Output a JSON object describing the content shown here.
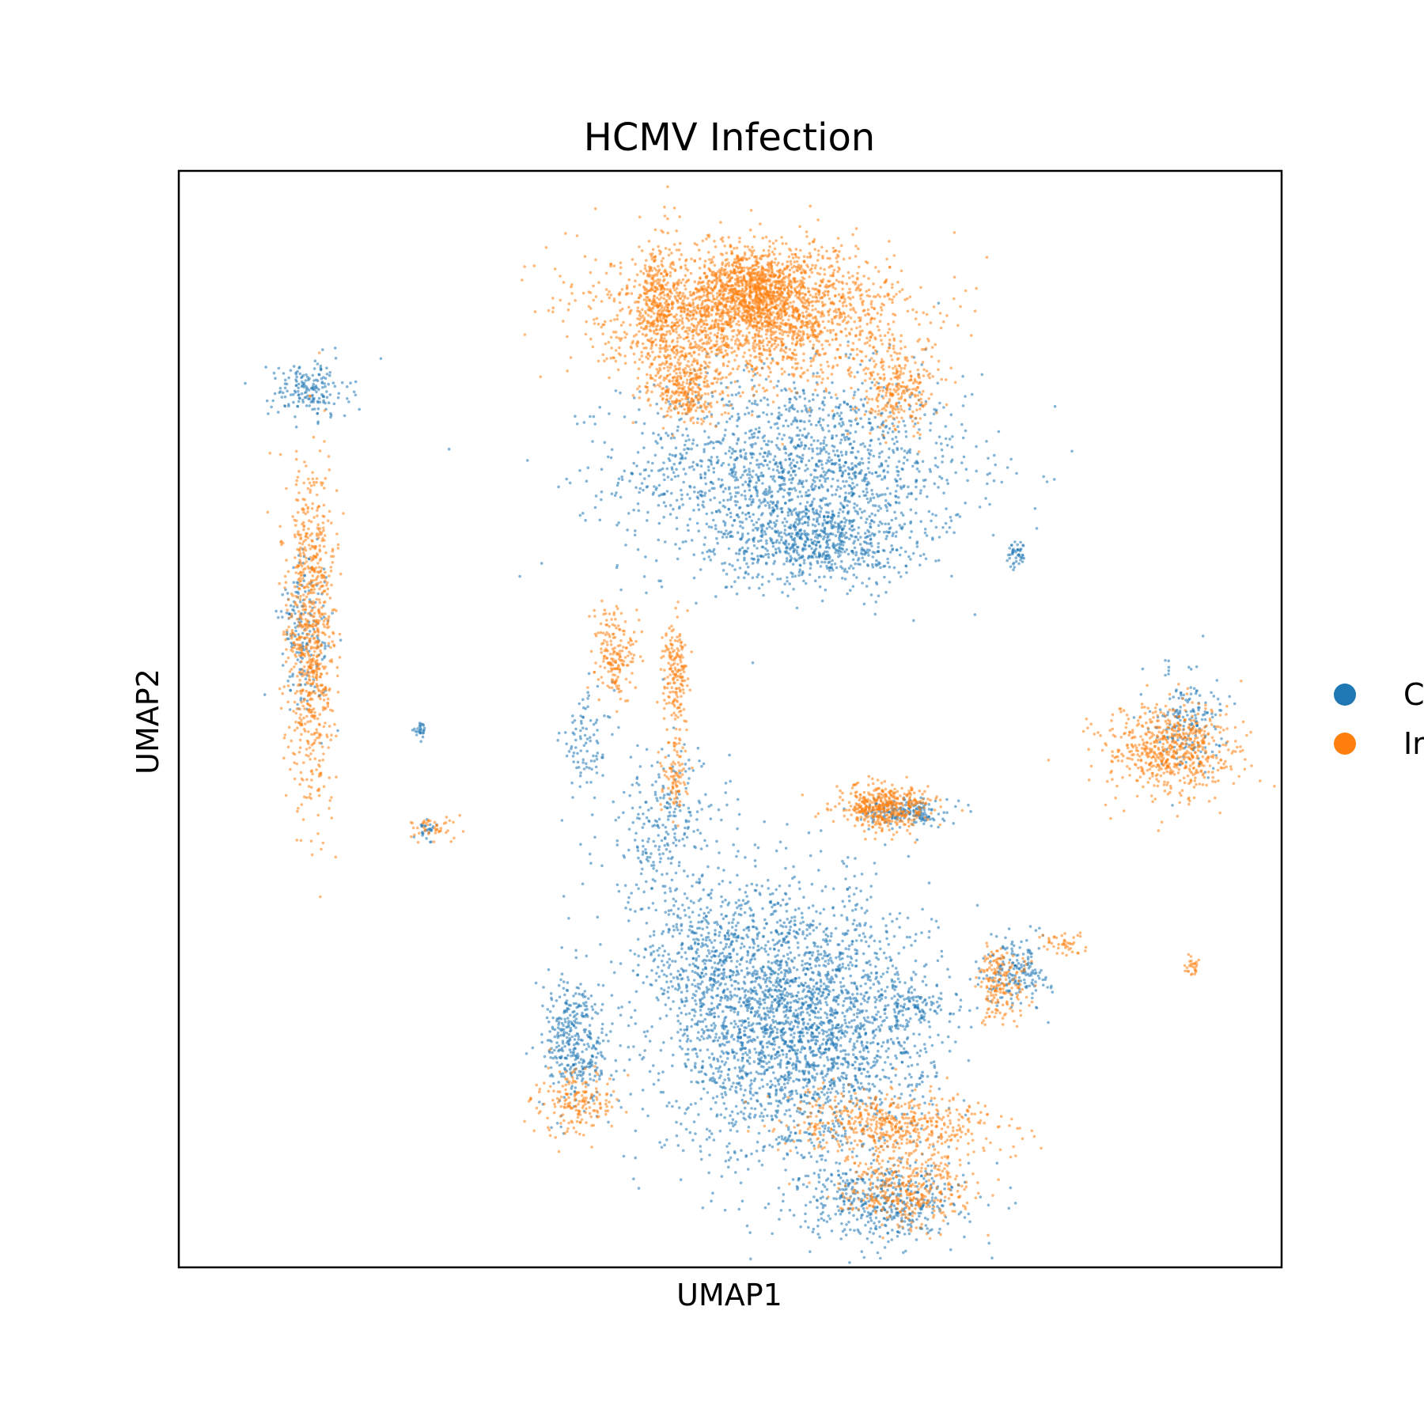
{
  "chart_data": {
    "type": "scatter",
    "title": "HCMV Infection",
    "xlabel": "UMAP1",
    "ylabel": "UMAP2",
    "xlim": [
      0,
      100
    ],
    "ylim": [
      0,
      100
    ],
    "grid": false,
    "ticks": false,
    "legend": {
      "placement": "right-outside",
      "entries_visible": [
        "C",
        "Ir"
      ]
    },
    "series": [
      {
        "name": "C",
        "color": "#1f77b4",
        "approx_point_count": 9000,
        "clusters": [
          {
            "cx": 56.0,
            "cy": 72.5,
            "sx": 13.0,
            "sy": 7.5,
            "weight": 0.19
          },
          {
            "cx": 58.0,
            "cy": 66.0,
            "sx": 7.0,
            "sy": 3.0,
            "weight": 0.06
          },
          {
            "cx": 11.8,
            "cy": 80.0,
            "sx": 3.0,
            "sy": 2.2,
            "weight": 0.02
          },
          {
            "cx": 44.0,
            "cy": 40.0,
            "sx": 5.0,
            "sy": 6.0,
            "weight": 0.03
          },
          {
            "cx": 37.0,
            "cy": 48.0,
            "sx": 2.0,
            "sy": 4.0,
            "weight": 0.01
          },
          {
            "cx": 56.0,
            "cy": 22.0,
            "sx": 10.0,
            "sy": 10.0,
            "weight": 0.31
          },
          {
            "cx": 48.0,
            "cy": 28.5,
            "sx": 5.0,
            "sy": 6.0,
            "weight": 0.04
          },
          {
            "cx": 36.0,
            "cy": 20.5,
            "sx": 2.5,
            "sy": 5.0,
            "weight": 0.04
          },
          {
            "cx": 64.0,
            "cy": 6.0,
            "sx": 6.0,
            "sy": 3.0,
            "weight": 0.05
          },
          {
            "cx": 66.0,
            "cy": 41.5,
            "sx": 3.0,
            "sy": 1.0,
            "weight": 0.02
          },
          {
            "cx": 91.5,
            "cy": 50.0,
            "sx": 2.5,
            "sy": 4.0,
            "weight": 0.02
          },
          {
            "cx": 76.0,
            "cy": 27.0,
            "sx": 2.5,
            "sy": 2.5,
            "weight": 0.02
          },
          {
            "cx": 67.0,
            "cy": 24.0,
            "sx": 3.0,
            "sy": 1.5,
            "weight": 0.01
          },
          {
            "cx": 11.5,
            "cy": 58.0,
            "sx": 2.0,
            "sy": 6.0,
            "weight": 0.02
          },
          {
            "cx": 76.0,
            "cy": 65.0,
            "sx": 0.7,
            "sy": 1.0,
            "weight": 0.005
          },
          {
            "cx": 22.5,
            "cy": 40.0,
            "sx": 0.6,
            "sy": 0.8,
            "weight": 0.003
          },
          {
            "cx": 22.0,
            "cy": 49.0,
            "sx": 0.6,
            "sy": 0.6,
            "weight": 0.003
          }
        ]
      },
      {
        "name": "Ir",
        "color": "#ff7f0e",
        "approx_point_count": 9000,
        "clusters": [
          {
            "cx": 52.0,
            "cy": 87.0,
            "sx": 11.0,
            "sy": 5.0,
            "weight": 0.26
          },
          {
            "cx": 52.5,
            "cy": 89.5,
            "sx": 4.0,
            "sy": 2.5,
            "weight": 0.06
          },
          {
            "cx": 46.0,
            "cy": 80.0,
            "sx": 2.5,
            "sy": 2.5,
            "weight": 0.03
          },
          {
            "cx": 65.0,
            "cy": 80.0,
            "sx": 3.0,
            "sy": 3.0,
            "weight": 0.03
          },
          {
            "cx": 43.5,
            "cy": 87.0,
            "sx": 1.5,
            "sy": 6.0,
            "weight": 0.03
          },
          {
            "cx": 12.0,
            "cy": 58.0,
            "sx": 1.8,
            "sy": 13.0,
            "weight": 0.09
          },
          {
            "cx": 90.0,
            "cy": 47.0,
            "sx": 5.0,
            "sy": 3.5,
            "weight": 0.07
          },
          {
            "cx": 64.0,
            "cy": 42.0,
            "sx": 3.5,
            "sy": 1.8,
            "weight": 0.05
          },
          {
            "cx": 65.0,
            "cy": 13.0,
            "sx": 8.0,
            "sy": 2.5,
            "weight": 0.06
          },
          {
            "cx": 66.0,
            "cy": 7.0,
            "sx": 5.0,
            "sy": 2.5,
            "weight": 0.04
          },
          {
            "cx": 36.0,
            "cy": 15.0,
            "sx": 3.0,
            "sy": 2.5,
            "weight": 0.02
          },
          {
            "cx": 39.5,
            "cy": 56.0,
            "sx": 1.5,
            "sy": 3.5,
            "weight": 0.02
          },
          {
            "cx": 45.0,
            "cy": 54.0,
            "sx": 1.0,
            "sy": 4.0,
            "weight": 0.02
          },
          {
            "cx": 45.0,
            "cy": 45.0,
            "sx": 1.0,
            "sy": 3.0,
            "weight": 0.01
          },
          {
            "cx": 74.5,
            "cy": 26.0,
            "sx": 2.0,
            "sy": 3.0,
            "weight": 0.02
          },
          {
            "cx": 80.0,
            "cy": 29.5,
            "sx": 1.8,
            "sy": 1.0,
            "weight": 0.005
          },
          {
            "cx": 23.0,
            "cy": 40.0,
            "sx": 2.0,
            "sy": 1.0,
            "weight": 0.005
          },
          {
            "cx": 92.0,
            "cy": 27.5,
            "sx": 0.8,
            "sy": 1.0,
            "weight": 0.003
          }
        ]
      }
    ]
  }
}
